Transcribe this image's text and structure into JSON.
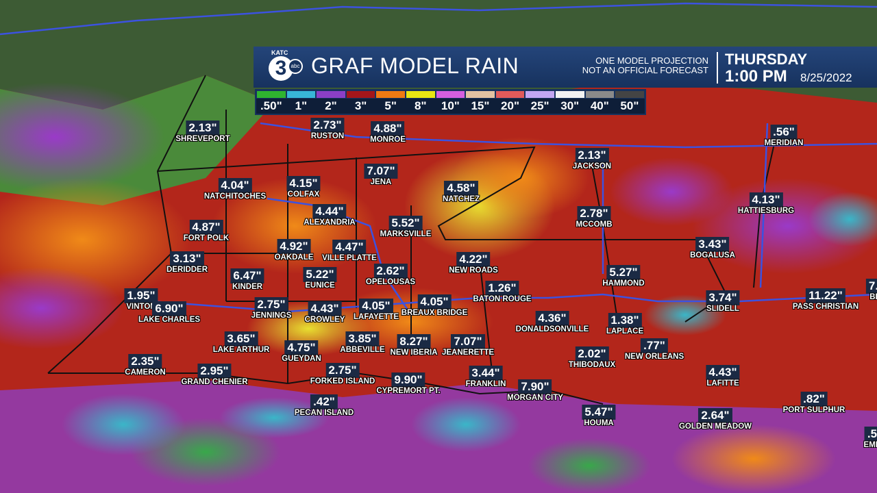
{
  "header": {
    "logo": {
      "station": "KATC",
      "number": "3",
      "network": "abc"
    },
    "title": "GRAF MODEL RAIN",
    "note": [
      "ONE MODEL PROJECTION",
      "NOT AN OFFICIAL FORECAST"
    ],
    "day": "THURSDAY",
    "time": "1:00 PM",
    "date": "8/25/2022"
  },
  "legend": [
    {
      "label": ".50\"",
      "color": "#2fb32f"
    },
    {
      "label": "1\"",
      "color": "#38b6d6"
    },
    {
      "label": "2\"",
      "color": "#8b3fc6"
    },
    {
      "label": "3\"",
      "color": "#a3161a"
    },
    {
      "label": "5\"",
      "color": "#f07a12"
    },
    {
      "label": "8\"",
      "color": "#e8e612"
    },
    {
      "label": "10\"",
      "color": "#d45fe0"
    },
    {
      "label": "15\"",
      "color": "#e2c2a2"
    },
    {
      "label": "20\"",
      "color": "#e05a5a"
    },
    {
      "label": "25\"",
      "color": "#c2a6f2"
    },
    {
      "label": "30\"",
      "color": "#f2f2f2"
    },
    {
      "label": "40\"",
      "color": "#8a8a8a"
    },
    {
      "label": "50\"",
      "color": "#444444"
    }
  ],
  "cities": [
    {
      "amount": "2.13\"",
      "name": "SHREVEPORT"
    },
    {
      "amount": "2.73\"",
      "name": "RUSTON"
    },
    {
      "amount": "4.88\"",
      "name": "MONROE"
    },
    {
      "amount": "7.07\"",
      "name": "JENA"
    },
    {
      "amount": "4.04\"",
      "name": "NATCHITOCHES"
    },
    {
      "amount": "4.15\"",
      "name": "COLFAX"
    },
    {
      "amount": "4.58\"",
      "name": "NATCHEZ"
    },
    {
      "amount": "2.13\"",
      "name": "JACKSON"
    },
    {
      "amount": ".56\"",
      "name": "MERIDIAN"
    },
    {
      "amount": "4.13\"",
      "name": "HATTIESBURG"
    },
    {
      "amount": "4.44\"",
      "name": "ALEXANDRIA"
    },
    {
      "amount": "2.78\"",
      "name": "MCCOMB"
    },
    {
      "amount": "4.87\"",
      "name": "FORT POLK"
    },
    {
      "amount": "5.52\"",
      "name": "MARKSVILLE"
    },
    {
      "amount": "4.92\"",
      "name": "OAKDALE"
    },
    {
      "amount": "4.47\"",
      "name": "VILLE PLATTE"
    },
    {
      "amount": "3.43\"",
      "name": "BOGALUSA"
    },
    {
      "amount": "3.13\"",
      "name": "DERIDDER"
    },
    {
      "amount": "4.22\"",
      "name": "NEW ROADS"
    },
    {
      "amount": "6.47\"",
      "name": "KINDER"
    },
    {
      "amount": "5.22\"",
      "name": "EUNICE"
    },
    {
      "amount": "2.62\"",
      "name": "OPELOUSAS"
    },
    {
      "amount": "5.27\"",
      "name": "HAMMOND"
    },
    {
      "amount": "1.26\"",
      "name": "BATON ROUGE"
    },
    {
      "amount": "1.95\"",
      "name": "VINTON"
    },
    {
      "amount": "6.90\"",
      "name": "LAKE CHARLES"
    },
    {
      "amount": "2.75\"",
      "name": "JENNINGS"
    },
    {
      "amount": "4.43\"",
      "name": "CROWLEY"
    },
    {
      "amount": "4.05\"",
      "name": "LAFAYETTE"
    },
    {
      "amount": "4.05\"",
      "name": "BREAUX BRIDGE"
    },
    {
      "amount": "3.74\"",
      "name": "SLIDELL"
    },
    {
      "amount": "11.22\"",
      "name": "PASS CHRISTIAN"
    },
    {
      "amount": "7.",
      "name": "BI"
    },
    {
      "amount": "4.36\"",
      "name": "DONALDSONVILLE"
    },
    {
      "amount": "1.38\"",
      "name": "LAPLACE"
    },
    {
      "amount": ".77\"",
      "name": "NEW ORLEANS"
    },
    {
      "amount": "3.65\"",
      "name": "LAKE ARTHUR"
    },
    {
      "amount": "4.75\"",
      "name": "GUEYDAN"
    },
    {
      "amount": "3.85\"",
      "name": "ABBEVILLE"
    },
    {
      "amount": "8.27\"",
      "name": "NEW IBERIA"
    },
    {
      "amount": "7.07\"",
      "name": "JEANERETTE"
    },
    {
      "amount": "2.02\"",
      "name": "THIBODAUX"
    },
    {
      "amount": "2.35\"",
      "name": "CAMERON"
    },
    {
      "amount": "2.95\"",
      "name": "GRAND CHENIER"
    },
    {
      "amount": "2.75\"",
      "name": "FORKED ISLAND"
    },
    {
      "amount": "9.90\"",
      "name": "CYPREMORT PT."
    },
    {
      "amount": "3.44\"",
      "name": "FRANKLIN"
    },
    {
      "amount": "7.90\"",
      "name": "MORGAN CITY"
    },
    {
      "amount": "4.43\"",
      "name": "LAFITTE"
    },
    {
      "amount": ".42\"",
      "name": "PECAN ISLAND"
    },
    {
      "amount": "5.47\"",
      "name": "HOUMA"
    },
    {
      "amount": "2.64\"",
      "name": "GOLDEN MEADOW"
    },
    {
      "amount": ".82\"",
      "name": "PORT SULPHUR"
    },
    {
      "amount": ".5",
      "name": "EMP"
    }
  ]
}
